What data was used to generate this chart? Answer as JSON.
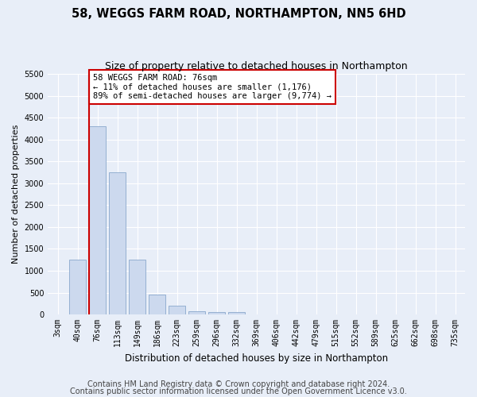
{
  "title_line1": "58, WEGGS FARM ROAD, NORTHAMPTON, NN5 6HD",
  "title_line2": "Size of property relative to detached houses in Northampton",
  "xlabel": "Distribution of detached houses by size in Northampton",
  "ylabel": "Number of detached properties",
  "bar_color": "#ccd9ee",
  "bar_edge_color": "#8aa8cc",
  "bin_labels": [
    "3sqm",
    "40sqm",
    "76sqm",
    "113sqm",
    "149sqm",
    "186sqm",
    "223sqm",
    "259sqm",
    "296sqm",
    "332sqm",
    "369sqm",
    "406sqm",
    "442sqm",
    "479sqm",
    "515sqm",
    "552sqm",
    "589sqm",
    "625sqm",
    "662sqm",
    "698sqm",
    "735sqm"
  ],
  "bar_values": [
    0,
    1250,
    4300,
    3250,
    1250,
    450,
    200,
    75,
    50,
    50,
    0,
    0,
    0,
    0,
    0,
    0,
    0,
    0,
    0,
    0,
    0
  ],
  "ylim": [
    0,
    5500
  ],
  "yticks": [
    0,
    500,
    1000,
    1500,
    2000,
    2500,
    3000,
    3500,
    4000,
    4500,
    5000,
    5500
  ],
  "vline_x_index": 2,
  "annotation_text": "58 WEGGS FARM ROAD: 76sqm\n← 11% of detached houses are smaller (1,176)\n89% of semi-detached houses are larger (9,774) →",
  "annotation_box_color": "#ffffff",
  "annotation_border_color": "#cc0000",
  "footer_line1": "Contains HM Land Registry data © Crown copyright and database right 2024.",
  "footer_line2": "Contains public sector information licensed under the Open Government Licence v3.0.",
  "plot_bg_color": "#e8eef8",
  "fig_bg_color": "#e8eef8",
  "grid_color": "#ffffff",
  "title_fontsize": 10.5,
  "subtitle_fontsize": 9,
  "xlabel_fontsize": 8.5,
  "ylabel_fontsize": 8,
  "tick_fontsize": 7,
  "footer_fontsize": 7,
  "annotation_fontsize": 7.5
}
